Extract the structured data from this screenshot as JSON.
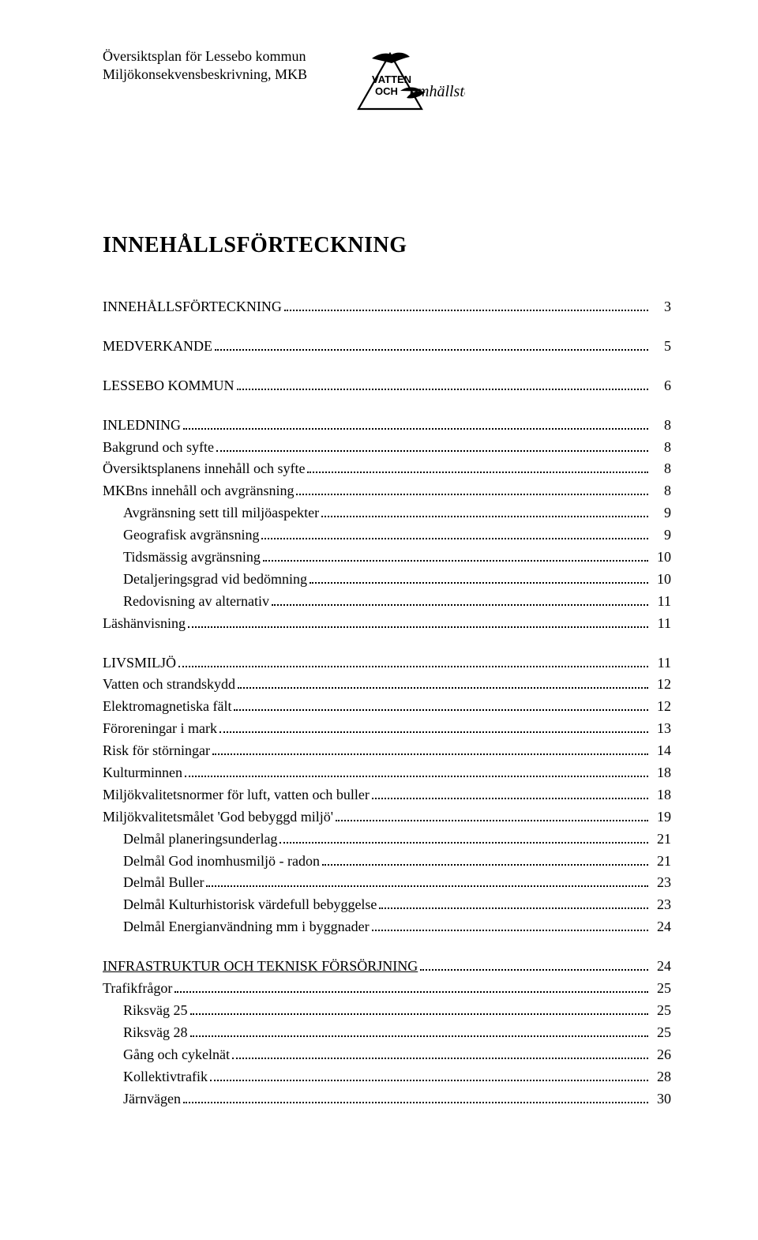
{
  "header": {
    "line1": "Översiktsplan för Lessebo kommun",
    "line2": "Miljökonsekvensbeskrivning, MKB",
    "logo_top": "VATTEN",
    "logo_mid": "OCH",
    "logo_script": "Samhällsteknik"
  },
  "title": "INNEHÅLLSFÖRTECKNING",
  "toc": [
    {
      "section": true,
      "items": [
        {
          "label": "INNEHÅLLSFÖRTECKNING",
          "page": "3",
          "indent": 0
        }
      ]
    },
    {
      "section": true,
      "items": [
        {
          "label": "MEDVERKANDE",
          "page": "5",
          "indent": 0
        }
      ]
    },
    {
      "section": true,
      "items": [
        {
          "label": "LESSEBO KOMMUN",
          "page": "6",
          "indent": 0
        }
      ]
    },
    {
      "section": true,
      "items": [
        {
          "label": "INLEDNING",
          "page": "8",
          "indent": 0
        },
        {
          "label": "Bakgrund och syfte",
          "page": "8",
          "indent": 0
        },
        {
          "label": "Översiktsplanens innehåll och syfte",
          "page": "8",
          "indent": 0
        },
        {
          "label": "MKBns innehåll och avgränsning",
          "page": "8",
          "indent": 0
        },
        {
          "label": "Avgränsning sett till miljöaspekter",
          "page": "9",
          "indent": 1
        },
        {
          "label": "Geografisk avgränsning",
          "page": "9",
          "indent": 1
        },
        {
          "label": "Tidsmässig avgränsning",
          "page": "10",
          "indent": 1
        },
        {
          "label": "Detaljeringsgrad vid bedömning",
          "page": "10",
          "indent": 1
        },
        {
          "label": "Redovisning av alternativ",
          "page": "11",
          "indent": 1
        },
        {
          "label": "Läshänvisning",
          "page": "11",
          "indent": 0
        }
      ]
    },
    {
      "section": true,
      "items": [
        {
          "label": "LIVSMILJÖ",
          "page": "11",
          "indent": 0
        },
        {
          "label": "Vatten och strandskydd",
          "page": "12",
          "indent": 0
        },
        {
          "label": "Elektromagnetiska fält",
          "page": "12",
          "indent": 0
        },
        {
          "label": "Föroreningar i mark",
          "page": "13",
          "indent": 0
        },
        {
          "label": "Risk för störningar",
          "page": "14",
          "indent": 0
        },
        {
          "label": "Kulturminnen",
          "page": "18",
          "indent": 0
        },
        {
          "label": "Miljökvalitetsnormer för luft, vatten och buller",
          "page": "18",
          "indent": 0
        },
        {
          "label": "Miljökvalitetsmålet 'God bebyggd miljö'",
          "page": "19",
          "indent": 0
        },
        {
          "label": "Delmål planeringsunderlag",
          "page": "21",
          "indent": 1
        },
        {
          "label": "Delmål God inomhusmiljö - radon",
          "page": "21",
          "indent": 1
        },
        {
          "label": "Delmål Buller",
          "page": "23",
          "indent": 1
        },
        {
          "label": "Delmål Kulturhistorisk värdefull bebyggelse",
          "page": "23",
          "indent": 1
        },
        {
          "label": "Delmål Energianvändning mm i byggnader",
          "page": "24",
          "indent": 1
        }
      ]
    },
    {
      "section": true,
      "items": [
        {
          "label": "INFRASTRUKTUR OCH TEKNISK FÖRSÖRJNING",
          "page": "24",
          "indent": 0,
          "uline": true
        },
        {
          "label": "Trafikfrågor",
          "page": "25",
          "indent": 0
        },
        {
          "label": "Riksväg 25",
          "page": "25",
          "indent": 1
        },
        {
          "label": "Riksväg 28",
          "page": "25",
          "indent": 1
        },
        {
          "label": "Gång och cykelnät",
          "page": "26",
          "indent": 1
        },
        {
          "label": "Kollektivtrafik",
          "page": "28",
          "indent": 1
        },
        {
          "label": "Järnvägen",
          "page": "30",
          "indent": 1
        }
      ]
    }
  ]
}
